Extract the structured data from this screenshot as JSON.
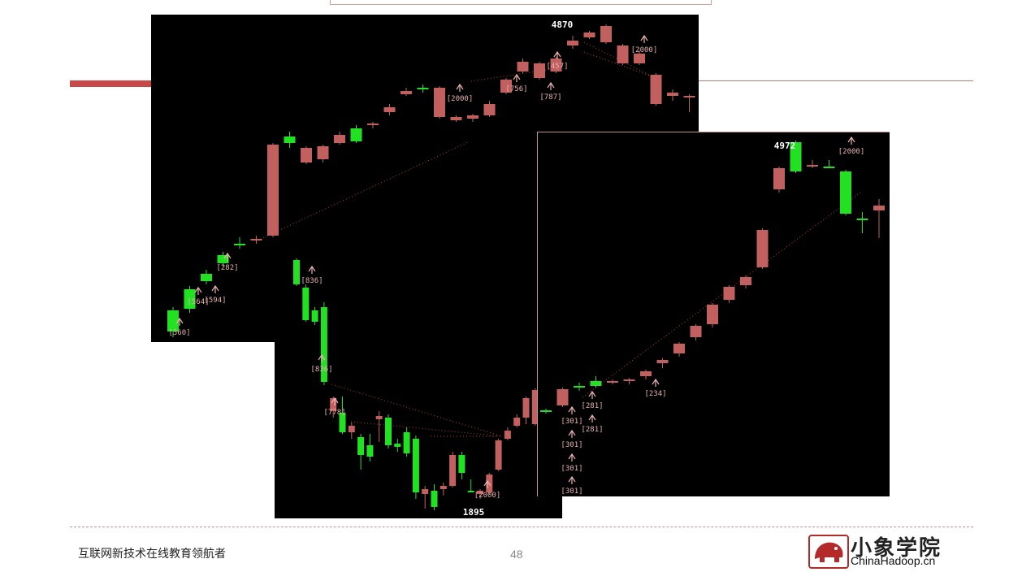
{
  "footer": {
    "slogan": "互联网新技术在线教育领航者",
    "page_number": "48",
    "logo_cn": "小象学院",
    "logo_en": "ChinaHadoop.cn"
  },
  "colors": {
    "up": "#c25f5f",
    "down": "#22e022",
    "panel_bg": "#000000",
    "label": "#e8b0b0",
    "dots": "#b04040"
  },
  "chart_data": [
    {
      "type": "candlestick",
      "name": "panel-top-left",
      "annotations": [
        "4870",
        "[2000]",
        "[457]",
        "[787]",
        "[756]",
        "[2000]",
        "[282]",
        "[564]",
        "[594]",
        "[560]"
      ],
      "ohlc": [
        [
          382,
          378,
          415,
          408
        ],
        [
          356,
          352,
          385,
          380
        ],
        [
          337,
          332,
          350,
          346
        ],
        [
          314,
          310,
          328,
          324
        ],
        [
          300,
          292,
          306,
          300
        ],
        [
          296,
          290,
          300,
          294
        ],
        [
          290,
          176,
          292,
          178
        ],
        [
          168,
          162,
          182,
          176
        ],
        [
          200,
          180,
          202,
          182
        ],
        [
          196,
          178,
          200,
          180
        ],
        [
          176,
          162,
          178,
          166
        ],
        [
          158,
          154,
          176,
          174
        ],
        [
          154,
          150,
          158,
          152
        ],
        [
          138,
          128,
          142,
          132
        ],
        [
          116,
          108,
          118,
          112
        ],
        [
          108,
          104,
          114,
          108
        ],
        [
          144,
          106,
          146,
          108
        ],
        [
          148,
          142,
          150,
          144
        ],
        [
          146,
          140,
          150,
          142
        ],
        [
          142,
          124,
          144,
          128
        ],
        [
          114,
          96,
          116,
          98
        ],
        [
          88,
          72,
          90,
          76
        ],
        [
          96,
          76,
          98,
          78
        ],
        [
          88,
          70,
          90,
          72
        ],
        [
          56,
          44,
          60,
          50
        ],
        [
          46,
          38,
          48,
          40
        ],
        [
          52,
          30,
          54,
          32
        ],
        [
          78,
          54,
          80,
          56
        ],
        [
          78,
          62,
          80,
          66
        ],
        [
          128,
          90,
          130,
          92
        ],
        [
          118,
          110,
          124,
          114
        ],
        [
          120,
          116,
          138,
          118
        ]
      ]
    },
    {
      "type": "candlestick",
      "name": "panel-bottom-left",
      "annotations": [
        "[836]",
        "[836]",
        "[778]",
        "1895",
        "[2000]"
      ],
      "ohlc": [
        [
          320,
          318,
          352,
          350
        ],
        [
          354,
          350,
          396,
          394
        ],
        [
          382,
          378,
          400,
          396
        ],
        [
          378,
          372,
          474,
          470
        ],
        [
          506,
          488,
          514,
          490
        ],
        [
          508,
          488,
          534,
          532
        ],
        [
          532,
          520,
          540,
          524
        ],
        [
          538,
          534,
          578,
          560
        ],
        [
          548,
          534,
          568,
          562
        ],
        [
          516,
          506,
          544,
          512
        ],
        [
          514,
          510,
          552,
          548
        ],
        [
          546,
          540,
          556,
          550
        ],
        [
          532,
          526,
          562,
          558
        ],
        [
          540,
          536,
          614,
          606
        ],
        [
          608,
          598,
          626,
          602
        ],
        [
          604,
          596,
          628,
          624
        ],
        [
          602,
          594,
          610,
          598
        ],
        [
          598,
          556,
          600,
          560
        ],
        [
          560,
          556,
          590,
          582
        ],
        [
          604,
          590,
          606,
          604
        ],
        [
          608,
          602,
          614,
          604
        ],
        [
          606,
          582,
          608,
          584
        ],
        [
          578,
          540,
          580,
          542
        ],
        [
          540,
          526,
          542,
          530
        ],
        [
          524,
          510,
          526,
          514
        ],
        [
          514,
          488,
          522,
          490
        ],
        [
          522,
          478,
          524,
          480
        ]
      ]
    },
    {
      "type": "candlestick",
      "name": "panel-right",
      "annotations": [
        "4972",
        "[2000]",
        "[234]",
        "[281]",
        "[281]",
        "[301]",
        "[301]",
        "[301]",
        "[301]"
      ],
      "ohlc": [
        [
          504,
          502,
          508,
          504
        ],
        [
          498,
          476,
          500,
          478
        ],
        [
          474,
          470,
          480,
          476
        ],
        [
          468,
          462,
          476,
          474
        ],
        [
          470,
          466,
          472,
          468
        ],
        [
          468,
          464,
          472,
          466
        ],
        [
          462,
          454,
          466,
          456
        ],
        [
          446,
          440,
          452,
          442
        ],
        [
          434,
          420,
          438,
          422
        ],
        [
          414,
          398,
          418,
          400
        ],
        [
          398,
          372,
          402,
          374
        ],
        [
          368,
          350,
          372,
          352
        ],
        [
          350,
          338,
          354,
          340
        ],
        [
          328,
          280,
          330,
          282
        ],
        [
          232,
          204,
          236,
          206
        ],
        [
          174,
          172,
          212,
          210
        ],
        [
          204,
          196,
          206,
          202
        ],
        [
          204,
          196,
          206,
          204
        ],
        [
          210,
          208,
          264,
          262
        ],
        [
          268,
          260,
          286,
          270
        ],
        [
          258,
          244,
          292,
          252
        ]
      ]
    }
  ]
}
